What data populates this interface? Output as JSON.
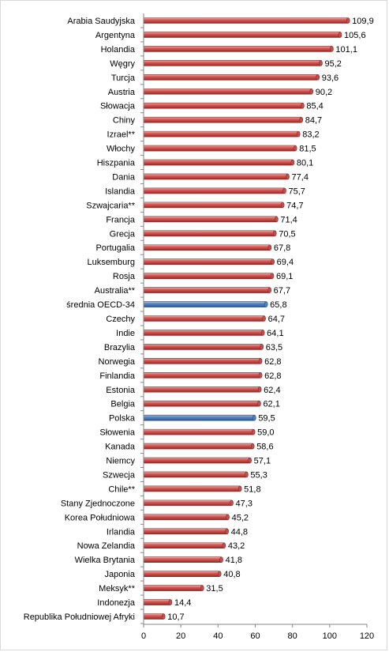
{
  "chart_data": {
    "type": "bar",
    "orientation": "horizontal",
    "categories": [
      "Arabia Saudyjska",
      "Argentyna",
      "Holandia",
      "Węgry",
      "Turcja",
      "Austria",
      "Słowacja",
      "Chiny",
      "Izrael**",
      "Włochy",
      "Hiszpania",
      "Dania",
      "Islandia",
      "Szwajcaria**",
      "Francja",
      "Grecja",
      "Portugalia",
      "Luksemburg",
      "Rosja",
      "Australia**",
      "średnia OECD-34",
      "Czechy",
      "Indie",
      "Brazylia",
      "Norwegia",
      "Finlandia",
      "Estonia",
      "Belgia",
      "Polska",
      "Słowenia",
      "Kanada",
      "Niemcy",
      "Szwecja",
      "Chile**",
      "Stany Zjednoczone",
      "Korea Południowa",
      "Irlandia",
      "Nowa Zelandia",
      "Wielka Brytania",
      "Japonia",
      "Meksyk**",
      "Indonezja",
      "Republika Południowej Afryki"
    ],
    "values": [
      109.9,
      105.6,
      101.1,
      95.2,
      93.6,
      90.2,
      85.4,
      84.7,
      83.2,
      81.5,
      80.1,
      77.4,
      75.7,
      74.7,
      71.4,
      70.5,
      67.8,
      69.4,
      69.1,
      67.7,
      65.8,
      64.7,
      64.1,
      63.5,
      62.8,
      62.8,
      62.4,
      62.1,
      59.5,
      59.0,
      58.6,
      57.1,
      55.3,
      51.8,
      47.3,
      45.2,
      44.8,
      43.2,
      41.8,
      40.8,
      31.5,
      14.4,
      10.7
    ],
    "value_labels": [
      "109,9",
      "105,6",
      "101,1",
      "95,2",
      "93,6",
      "90,2",
      "85,4",
      "84,7",
      "83,2",
      "81,5",
      "80,1",
      "77,4",
      "75,7",
      "74,7",
      "71,4",
      "70,5",
      "67,8",
      "69,4",
      "69,1",
      "67,7",
      "65,8",
      "64,7",
      "64,1",
      "63,5",
      "62,8",
      "62,8",
      "62,4",
      "62,1",
      "59,5",
      "59,0",
      "58,6",
      "57,1",
      "55,3",
      "51,8",
      "47,3",
      "45,2",
      "44,8",
      "43,2",
      "41,8",
      "40,8",
      "31,5",
      "14,4",
      "10,7"
    ],
    "highlight": [
      "średnia OECD-34",
      "Polska"
    ],
    "xlim": [
      0,
      120
    ],
    "xticks": [
      0,
      20,
      40,
      60,
      80,
      100,
      120
    ],
    "grid": false,
    "colors": {
      "default": "#c0504d",
      "highlight": "#4f81bd"
    }
  }
}
